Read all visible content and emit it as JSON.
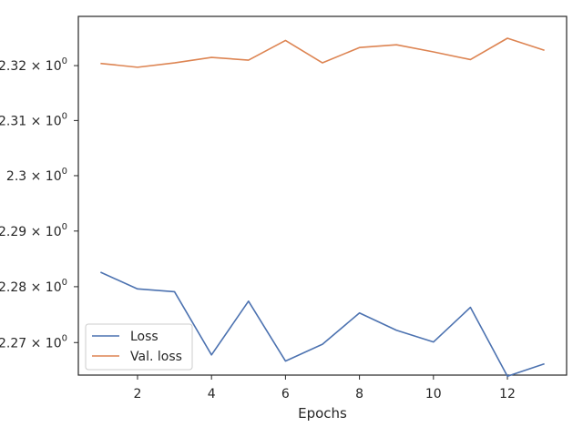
{
  "chart_data": {
    "type": "line",
    "title": "",
    "xlabel": "Epochs",
    "ylabel": "",
    "yscale": "log",
    "grid": false,
    "legend_position": "lower-left",
    "x": [
      1,
      2,
      3,
      4,
      5,
      6,
      7,
      8,
      9,
      10,
      11,
      12,
      13
    ],
    "xlim": [
      0.4,
      13.6
    ],
    "ylim": [
      2.2642,
      2.329
    ],
    "xticks": [
      2,
      4,
      6,
      8,
      10,
      12
    ],
    "yticks": [
      {
        "value": 2.27,
        "label": "2.27 × 10",
        "exp": "0"
      },
      {
        "value": 2.28,
        "label": "2.28 × 10",
        "exp": "0"
      },
      {
        "value": 2.29,
        "label": "2.29 × 10",
        "exp": "0"
      },
      {
        "value": 2.3,
        "label": "2.3 × 10",
        "exp": "0"
      },
      {
        "value": 2.31,
        "label": "2.31 × 10",
        "exp": "0"
      },
      {
        "value": 2.32,
        "label": "2.32 × 10",
        "exp": "0"
      }
    ],
    "series": [
      {
        "name": "Loss",
        "color": "#4c72b0",
        "values": [
          2.2826,
          2.2796,
          2.2791,
          2.2678,
          2.2774,
          2.2667,
          2.2697,
          2.2753,
          2.2722,
          2.2701,
          2.2763,
          2.264,
          2.2662
        ]
      },
      {
        "name": "Val. loss",
        "color": "#dd8452",
        "values": [
          2.3204,
          2.3197,
          2.3205,
          2.3215,
          2.321,
          2.3246,
          2.3205,
          2.3233,
          2.3238,
          2.3225,
          2.3211,
          2.325,
          2.3228
        ]
      }
    ]
  }
}
